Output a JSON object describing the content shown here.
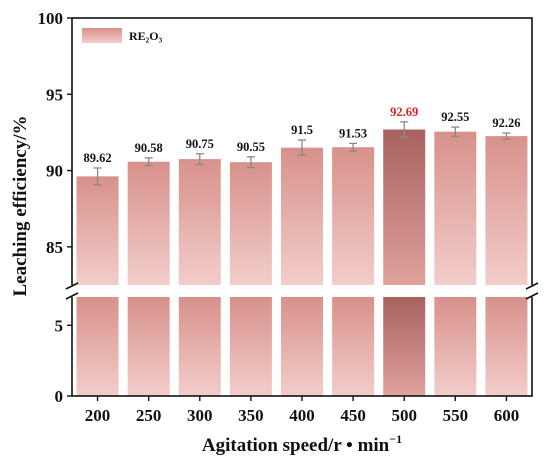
{
  "chart_data": {
    "type": "bar",
    "xlabel": "Agitation speed/r • min",
    "xlabel_superscript": "−1",
    "ylabel": "Leaching efficiency/%",
    "categories": [
      "200",
      "250",
      "300",
      "350",
      "400",
      "450",
      "500",
      "550",
      "600"
    ],
    "series": [
      {
        "name": "RE₂O₃",
        "values": [
          89.62,
          90.58,
          90.75,
          90.55,
          91.5,
          91.53,
          92.69,
          92.55,
          92.26
        ],
        "errors": [
          0.55,
          0.25,
          0.35,
          0.35,
          0.5,
          0.25,
          0.5,
          0.3,
          0.2
        ],
        "data_labels": [
          "89.62",
          "90.58",
          "90.75",
          "90.55",
          "91.5",
          "91.53",
          "92.69",
          "92.55",
          "92.26"
        ]
      }
    ],
    "highlight_index": 6,
    "y_axis_broken": true,
    "ylim_upper": [
      82.5,
      100
    ],
    "ylim_lower": [
      0,
      7
    ],
    "yticks_upper": [
      "85",
      "90",
      "95",
      "100"
    ],
    "yticks_lower": [
      "0",
      "5"
    ],
    "legend_position": "top-left",
    "grid": false,
    "colors": {
      "bar_top": "#d8918b",
      "bar_bottom": "#f2cdca",
      "highlight_top": "#a8625e",
      "highlight_bottom": "#e0a29b",
      "highlight_label": "#e02020",
      "error_bar": "#888888"
    }
  }
}
